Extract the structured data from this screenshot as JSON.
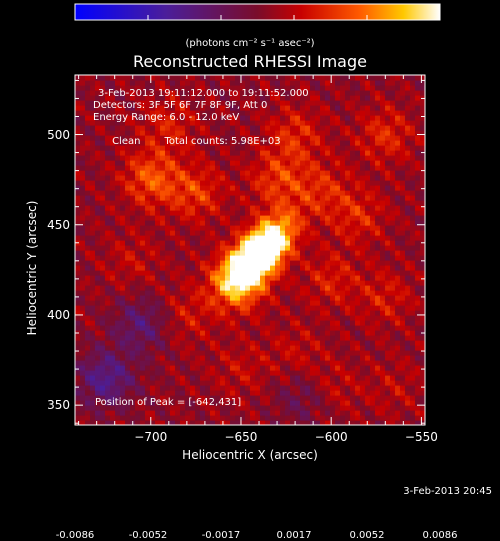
{
  "chart_data": {
    "type": "heatmap",
    "title": "Reconstructed RHESSI Image",
    "xlabel": "Heliocentric X (arcsec)",
    "ylabel": "Heliocentric Y (arcsec)",
    "xlim": [
      -742,
      -548
    ],
    "ylim": [
      339,
      533
    ],
    "x_ticks": [
      -700,
      -650,
      -600,
      -550
    ],
    "y_ticks": [
      350,
      400,
      450,
      500
    ],
    "colorbar": {
      "range": [
        -0.0086,
        0.0086
      ],
      "ticks": [
        "-0.0086",
        "-0.0052",
        "-0.0017",
        "0.0017",
        "0.0052",
        "0.0086"
      ],
      "units": "(photons cm⁻² s⁻¹ asec⁻²)",
      "colormap": "blue-purple-red-orange-yellow-white"
    },
    "peak": {
      "x": -642,
      "y": 431,
      "value": 0.0086
    },
    "annotations": {
      "time_range": "3-Feb-2013 19:11:12.000 to 19:11:52.000",
      "detectors": "Detectors: 3F 5F 6F 7F 8F 9F, Att 0",
      "energy_range": "Energy Range: 6.0 - 12.0 keV",
      "method": "Clean",
      "total_counts": "Total counts: 5.98E+03",
      "peak_position": "Position of Peak = [-642,431]"
    },
    "source_blobs": [
      {
        "x": -642,
        "y": 431,
        "value": 0.0086
      },
      {
        "x": -634,
        "y": 442,
        "value": 0.006
      },
      {
        "x": -652,
        "y": 418,
        "value": 0.005
      },
      {
        "x": -700,
        "y": 476,
        "value": 0.0038
      },
      {
        "x": -675,
        "y": 468,
        "value": 0.003
      },
      {
        "x": -630,
        "y": 475,
        "value": 0.003
      },
      {
        "x": -620,
        "y": 500,
        "value": 0.0026
      },
      {
        "x": -605,
        "y": 470,
        "value": 0.0024
      },
      {
        "x": -585,
        "y": 455,
        "value": 0.0024
      },
      {
        "x": -570,
        "y": 500,
        "value": 0.0026
      },
      {
        "x": -600,
        "y": 420,
        "value": 0.0022
      },
      {
        "x": -570,
        "y": 410,
        "value": 0.002
      },
      {
        "x": -680,
        "y": 400,
        "value": 0.0018
      },
      {
        "x": -710,
        "y": 430,
        "value": 0.0014
      },
      {
        "x": -690,
        "y": 505,
        "value": 0.0022
      },
      {
        "x": -650,
        "y": 370,
        "value": 0.0014
      },
      {
        "x": -620,
        "y": 380,
        "value": 0.0014
      },
      {
        "x": -600,
        "y": 360,
        "value": 0.0016
      },
      {
        "x": -565,
        "y": 360,
        "value": 0.0012
      },
      {
        "x": -725,
        "y": 365,
        "value": -0.004
      },
      {
        "x": -705,
        "y": 395,
        "value": -0.003
      },
      {
        "x": -615,
        "y": 355,
        "value": -0.002
      }
    ]
  },
  "footer": {
    "timestamp": "3-Feb-2013 20:45"
  }
}
